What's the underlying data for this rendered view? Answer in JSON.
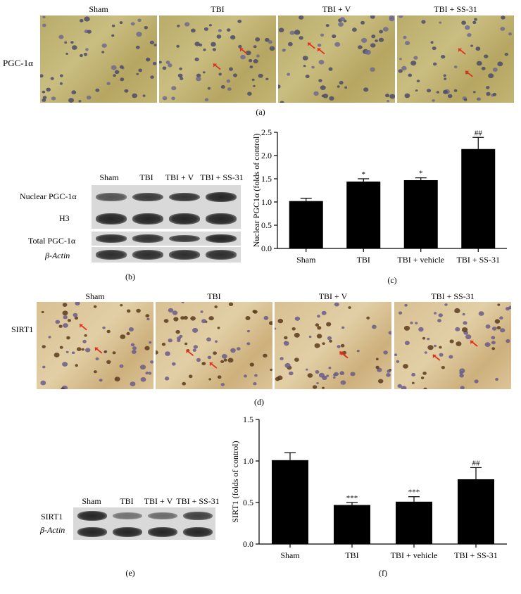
{
  "panel_a": {
    "row_label": "PGC-1α",
    "columns": [
      "Sham",
      "TBI",
      "TBI + V",
      "TBI + SS-31"
    ],
    "caption": "(a)"
  },
  "panel_b": {
    "columns": [
      "Sham",
      "TBI",
      "TBI + V",
      "TBI + SS-31"
    ],
    "rows": [
      "Nuclear PGC-1α",
      "H3",
      "Total PGC-1α",
      "β-Actin"
    ],
    "caption": "(b)",
    "band_intensity": {
      "Nuclear PGC-1α": [
        0.55,
        0.75,
        0.8,
        0.9
      ],
      "H3": [
        0.9,
        0.9,
        0.9,
        0.9
      ],
      "Total PGC-1α": [
        0.85,
        0.8,
        0.75,
        0.9
      ],
      "β-Actin": [
        0.85,
        0.85,
        0.85,
        0.85
      ]
    }
  },
  "panel_d": {
    "row_label": "SIRT1",
    "columns": [
      "Sham",
      "TBI",
      "TBI + V",
      "TBI + SS-31"
    ],
    "caption": "(d)"
  },
  "panel_e": {
    "columns": [
      "Sham",
      "TBI",
      "TBI + V",
      "TBI + SS-31"
    ],
    "rows": [
      "SIRT1",
      "β-Actin"
    ],
    "caption": "(e)",
    "band_intensity": {
      "SIRT1": [
        0.9,
        0.3,
        0.35,
        0.7
      ],
      "β-Actin": [
        0.9,
        0.9,
        0.9,
        0.9
      ]
    }
  },
  "chart_data": [
    {
      "type": "bar",
      "caption": "(c)",
      "categories": [
        "Sham",
        "TBI",
        "TBI + vehicle",
        "TBI + SS-31"
      ],
      "values": [
        1.02,
        1.44,
        1.47,
        2.14
      ],
      "errors": [
        0.06,
        0.06,
        0.05,
        0.25
      ],
      "annotations": [
        "",
        "*",
        "*",
        "##"
      ],
      "ylabel": "Nuclear PGC1α (folds of control)",
      "ylim": [
        0,
        2.5
      ],
      "yticks": [
        "0.0",
        "0.5",
        "1.0",
        "1.5",
        "2.0",
        "2.5"
      ],
      "bar_color": "#000000"
    },
    {
      "type": "bar",
      "caption": "(f)",
      "categories": [
        "Sham",
        "TBI",
        "TBI + vehicle",
        "TBI + SS-31"
      ],
      "values": [
        1.01,
        0.47,
        0.51,
        0.78
      ],
      "errors": [
        0.09,
        0.03,
        0.06,
        0.14
      ],
      "annotations": [
        "",
        "***",
        "***",
        "##"
      ],
      "ylabel": "SIRT1 (folds of control)",
      "ylim": [
        0,
        1.5
      ],
      "yticks": [
        "0.0",
        "0.5",
        "1.0",
        "1.5"
      ],
      "bar_color": "#000000"
    }
  ]
}
